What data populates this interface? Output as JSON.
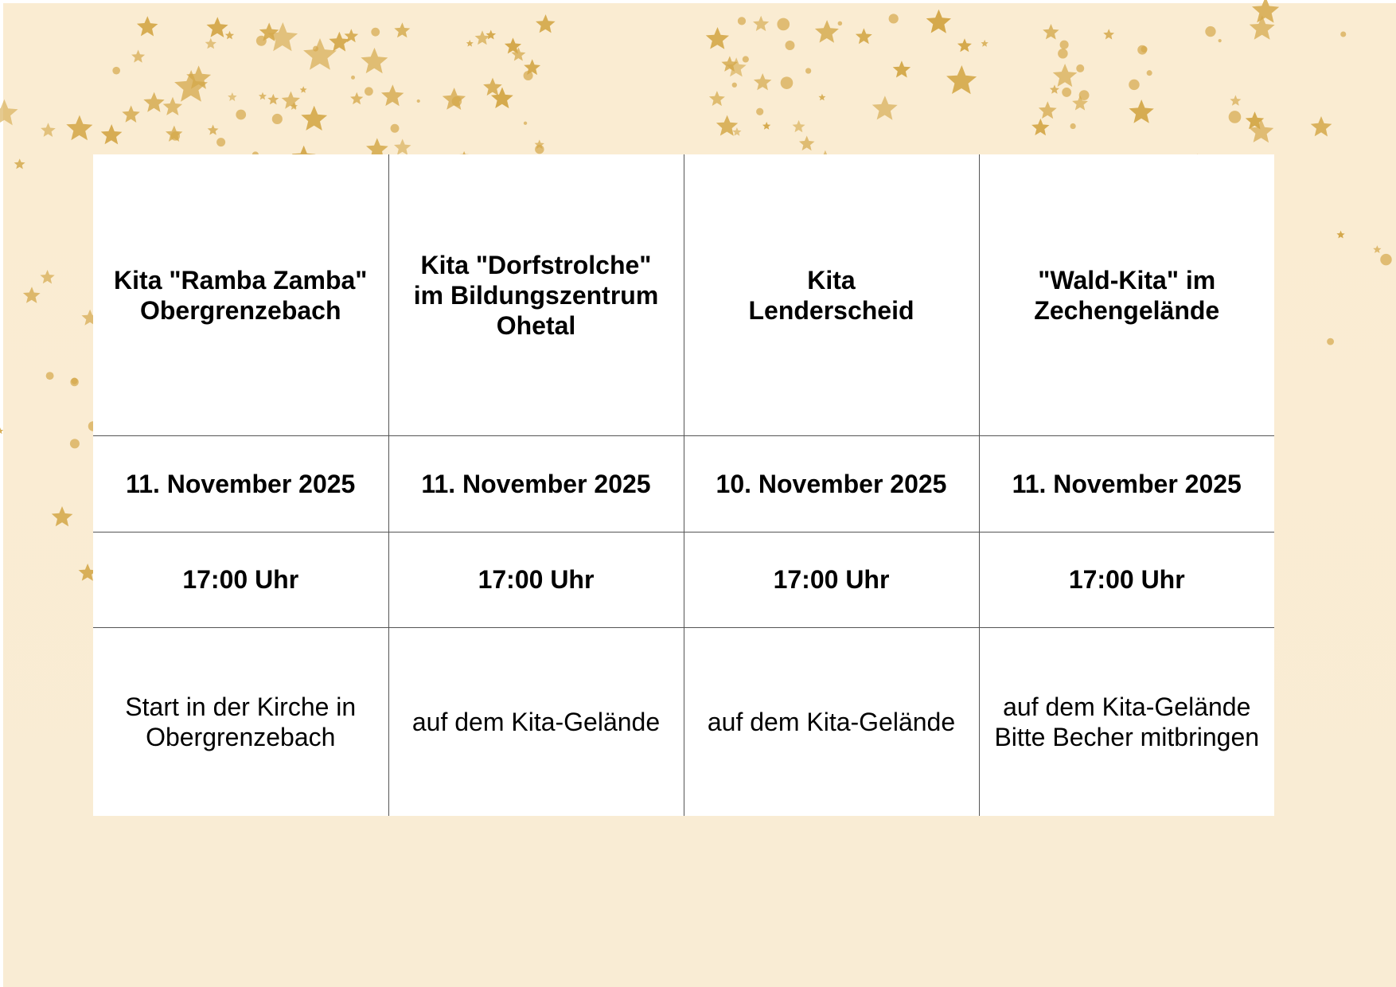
{
  "colors": {
    "background": "#faecd2",
    "stars": "#d4a84a",
    "table_background": "#ffffff",
    "grid": "#555555"
  },
  "decoration": "gold-stars",
  "table": {
    "rows": [
      [
        "Kita \"Ramba Zamba\"\nObergrenzebach",
        "Kita \"Dorfstrolche\"\nim Bildungszentrum\nOhetal",
        "Kita\nLenderscheid",
        "\"Wald-Kita\" im\nZechengelände"
      ],
      [
        "11. November 2025",
        "11. November 2025",
        "10. November 2025",
        "11. November 2025"
      ],
      [
        "17:00 Uhr",
        "17:00 Uhr",
        "17:00 Uhr",
        "17:00 Uhr"
      ],
      [
        "Start in der Kirche in\nObergrenzebach",
        "auf dem Kita-Gelände",
        "auf dem Kita-Gelände",
        "auf dem Kita-Gelände\nBitte Becher mitbringen"
      ]
    ]
  }
}
